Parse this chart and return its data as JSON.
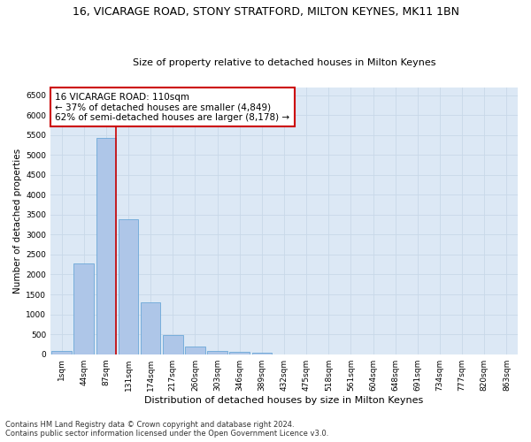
{
  "title": "16, VICARAGE ROAD, STONY STRATFORD, MILTON KEYNES, MK11 1BN",
  "subtitle": "Size of property relative to detached houses in Milton Keynes",
  "xlabel": "Distribution of detached houses by size in Milton Keynes",
  "ylabel": "Number of detached properties",
  "categories": [
    "1sqm",
    "44sqm",
    "87sqm",
    "131sqm",
    "174sqm",
    "217sqm",
    "260sqm",
    "303sqm",
    "346sqm",
    "389sqm",
    "432sqm",
    "475sqm",
    "518sqm",
    "561sqm",
    "604sqm",
    "648sqm",
    "691sqm",
    "734sqm",
    "777sqm",
    "820sqm",
    "863sqm"
  ],
  "values": [
    75,
    2280,
    5420,
    3380,
    1310,
    480,
    195,
    80,
    55,
    40,
    0,
    0,
    0,
    0,
    0,
    0,
    0,
    0,
    0,
    0,
    0
  ],
  "bar_color": "#aec6e8",
  "bar_edge_color": "#5a9fd4",
  "vline_color": "#cc0000",
  "annotation_text": "16 VICARAGE ROAD: 110sqm\n← 37% of detached houses are smaller (4,849)\n62% of semi-detached houses are larger (8,178) →",
  "annotation_box_color": "#ffffff",
  "annotation_box_edge": "#cc0000",
  "ylim_max": 6700,
  "yticks": [
    0,
    500,
    1000,
    1500,
    2000,
    2500,
    3000,
    3500,
    4000,
    4500,
    5000,
    5500,
    6000,
    6500
  ],
  "grid_color": "#c8d8e8",
  "background_color": "#dce8f5",
  "footer": "Contains HM Land Registry data © Crown copyright and database right 2024.\nContains public sector information licensed under the Open Government Licence v3.0.",
  "title_fontsize": 9,
  "subtitle_fontsize": 8,
  "xlabel_fontsize": 8,
  "ylabel_fontsize": 7.5,
  "tick_fontsize": 6.5,
  "annotation_fontsize": 7.5,
  "footer_fontsize": 6
}
